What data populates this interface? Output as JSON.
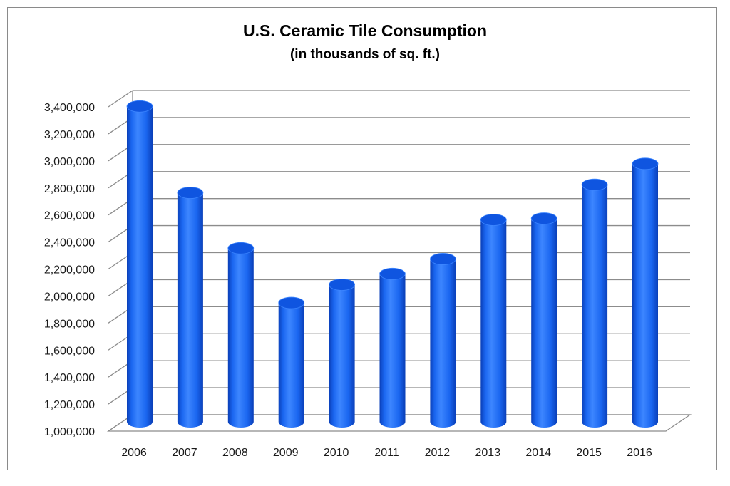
{
  "chart_data": {
    "type": "bar",
    "title": "U.S. Ceramic Tile Consumption",
    "subtitle": "(in thousands of sq. ft.)",
    "xlabel": "",
    "ylabel": "",
    "categories": [
      "2006",
      "2007",
      "2008",
      "2009",
      "2010",
      "2011",
      "2012",
      "2013",
      "2014",
      "2015",
      "2016"
    ],
    "values": [
      3325000,
      2685000,
      2275000,
      1870000,
      2005000,
      2085000,
      2195000,
      2485000,
      2495000,
      2745000,
      2900000
    ],
    "ylim": [
      1000000,
      3400000
    ],
    "yticks": [
      1000000,
      1200000,
      1400000,
      1600000,
      1800000,
      2000000,
      2200000,
      2400000,
      2600000,
      2800000,
      3000000,
      3200000,
      3400000
    ],
    "ytick_labels": [
      "1,000,000",
      "1,200,000",
      "1,400,000",
      "1,600,000",
      "1,800,000",
      "2,000,000",
      "2,200,000",
      "2,400,000",
      "2,600,000",
      "2,800,000",
      "3,000,000",
      "3,200,000",
      "3,400,000"
    ],
    "grid": true,
    "legend": "none",
    "style": "3d-cylinder"
  },
  "colors": {
    "bar_main": "#1a66f0",
    "bar_light": "#3d86ff",
    "bar_dark": "#0a3fb8",
    "bar_top": "#0f55e0",
    "gridline": "#8c8c8c",
    "frame": "#8a8a8a"
  }
}
